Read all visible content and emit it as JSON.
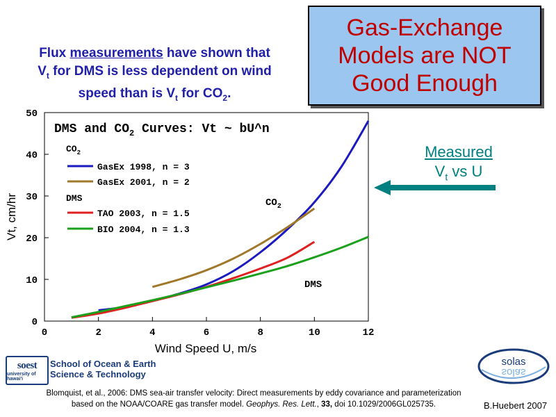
{
  "slide": {
    "title_lines": [
      "Gas-Exchange",
      "Models are NOT",
      "Good Enough"
    ],
    "intro": {
      "p1": "Flux ",
      "p2": "measurements",
      "p3": " have shown that",
      "l2a": "V",
      "l2sub": "t",
      "l2b": " for DMS is less dependent on wind",
      "l3a": "speed than is V",
      "l3sub": "t",
      "l3b": " for CO",
      "l3sub2": "2",
      "l3c": "."
    },
    "callout": {
      "measured": "Measured",
      "v": "V",
      "sub": "t",
      "rest": " vs U"
    },
    "logo_soest": {
      "big": "soest",
      "small": "university of hawai'i",
      "line1": "School of Ocean & Earth",
      "line2": "Science & Technology"
    },
    "logo_solas": {
      "text": "solas"
    },
    "citation": {
      "a": "Blomquist, et al., 2006: DMS sea-air transfer velocity: Direct measurements by eddy covariance and parameterization",
      "b": "based on the NOAA/COARE gas transfer model. ",
      "journal": "Geophys. Res. Lett.",
      "sep": ", ",
      "vol": "33,",
      "doi": " doi 10.1029/2006GL025735."
    },
    "credit": "B.Huebert 2007",
    "colors": {
      "title_bg": "#9ac6f0",
      "title_text": "#c00000",
      "intro_text": "#1f1fa8",
      "callout": "#008080"
    }
  },
  "chart_data": {
    "type": "line",
    "title_parts": [
      "DMS and CO",
      "2",
      " Curves:  Vt ~ bU^n"
    ],
    "xlabel": "Wind Speed U, m/s",
    "ylabel": "Vt, cm/hr",
    "xlim": [
      0,
      12
    ],
    "ylim": [
      0,
      50
    ],
    "xticks": [
      0,
      2,
      4,
      6,
      8,
      10,
      12
    ],
    "yticks": [
      0,
      10,
      20,
      30,
      40,
      50
    ],
    "legend": {
      "group1": [
        "CO",
        "2"
      ],
      "group2": "DMS",
      "entries": [
        "GasEx 1998, n = 3",
        "GasEx 2001, n = 2",
        "TAO 2003, n = 1.5",
        "BIO  2004, n = 1.3"
      ]
    },
    "annotations": {
      "co2": [
        "CO",
        "2"
      ],
      "dms": "DMS"
    },
    "series": [
      {
        "name": "GasEx 1998, n = 3",
        "color": "#1a1ac0",
        "points": [
          [
            2,
            2.6
          ],
          [
            3,
            3.4
          ],
          [
            4,
            4.8
          ],
          [
            5,
            6.6
          ],
          [
            6,
            8.8
          ],
          [
            7,
            12
          ],
          [
            8,
            16.5
          ],
          [
            9,
            22
          ],
          [
            10,
            28.5
          ],
          [
            11,
            37
          ],
          [
            12,
            48
          ]
        ]
      },
      {
        "name": "GasEx 2001, n = 2",
        "color": "#a0782a",
        "points": [
          [
            4,
            8.2
          ],
          [
            5,
            10
          ],
          [
            6,
            12.2
          ],
          [
            7,
            15
          ],
          [
            8,
            18.5
          ],
          [
            9,
            22.5
          ],
          [
            10,
            27
          ]
        ]
      },
      {
        "name": "TAO 2003, n = 1.5",
        "color": "#e02020",
        "points": [
          [
            1,
            0.8
          ],
          [
            2,
            1.8
          ],
          [
            3,
            3.2
          ],
          [
            4,
            4.8
          ],
          [
            5,
            6.4
          ],
          [
            6,
            8.2
          ],
          [
            7,
            10.3
          ],
          [
            8,
            12.6
          ],
          [
            9,
            15.2
          ],
          [
            10,
            19
          ]
        ]
      },
      {
        "name": "BIO  2004, n = 1.3",
        "color": "#1aa01a",
        "points": [
          [
            1,
            0.9
          ],
          [
            2,
            2.2
          ],
          [
            3,
            3.6
          ],
          [
            4,
            5
          ],
          [
            5,
            6.5
          ],
          [
            6,
            8.1
          ],
          [
            7,
            9.7
          ],
          [
            8,
            11.4
          ],
          [
            9,
            13.2
          ],
          [
            10,
            15.3
          ],
          [
            11,
            17.6
          ],
          [
            12,
            20.2
          ]
        ]
      }
    ]
  }
}
